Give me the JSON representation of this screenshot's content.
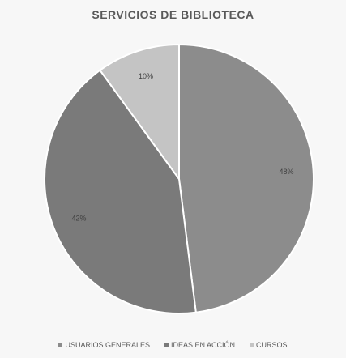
{
  "chart_data": {
    "type": "pie",
    "title": "SERVICIOS DE BIBLIOTECA",
    "categories": [
      "USUARIOS GENERALES",
      "IDEAS EN ACCIÓN",
      "CURSOS"
    ],
    "values": [
      48,
      42,
      10
    ],
    "value_labels": [
      "48%",
      "42%",
      "10%"
    ],
    "colors": [
      "#8c8c8c",
      "#7a7a7a",
      "#c4c4c4"
    ],
    "legend_position": "bottom",
    "start_angle_deg": 0,
    "direction": "clockwise"
  }
}
